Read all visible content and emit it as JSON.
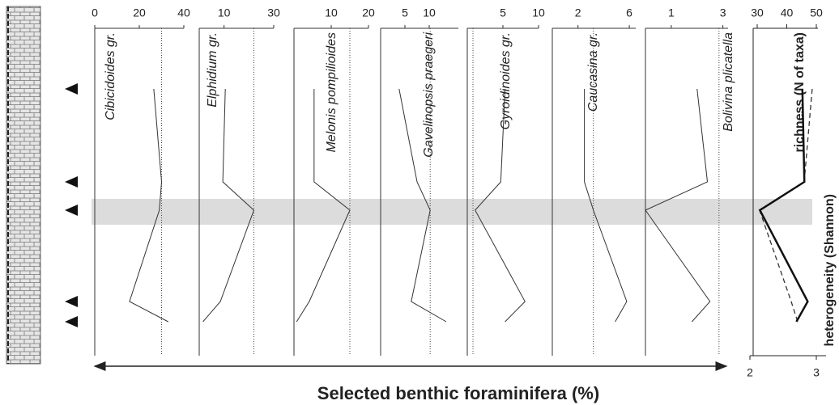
{
  "chart_data": [
    {
      "type": "line",
      "title": "Cibicidoides gr.",
      "xlim": [
        0,
        40
      ],
      "xticks": [
        0,
        20,
        40
      ],
      "ref": 30,
      "categories": [
        null,
        null,
        null,
        null,
        null
      ],
      "values": [
        26.5,
        30,
        29,
        15.6,
        33
      ]
    },
    {
      "type": "line",
      "title": "Elphidium gr.",
      "xlim": [
        0,
        30
      ],
      "xticks": [
        10,
        30
      ],
      "ref": 22,
      "categories": [
        null,
        null,
        null,
        null,
        null
      ],
      "values": [
        10.5,
        9.5,
        22,
        8.5,
        1.5
      ]
    },
    {
      "type": "line",
      "title": "Melonis pompilioides",
      "xlim": [
        0,
        20
      ],
      "xticks": [
        10,
        20
      ],
      "ref": 15,
      "categories": [
        null,
        null,
        null,
        null,
        null
      ],
      "values": [
        5.4,
        5.4,
        15,
        4.1,
        0.7
      ]
    },
    {
      "type": "line",
      "title": "Gavelinopsis praegeri",
      "xlim": [
        0,
        16
      ],
      "xticks": [
        5,
        10
      ],
      "ref": 10.2,
      "categories": [
        null,
        null,
        null,
        null,
        null
      ],
      "values": [
        3.8,
        7.5,
        10.2,
        6.3,
        13.5
      ]
    },
    {
      "type": "line",
      "title": "Gyroidinoides gr.",
      "xlim": [
        0,
        10
      ],
      "xticks": [
        5,
        10
      ],
      "ref": 0.8,
      "categories": [
        null,
        null,
        null,
        null,
        null
      ],
      "values": [
        5.3,
        4.7,
        1.1,
        8.1,
        5.3
      ]
    },
    {
      "type": "line",
      "title": "Caucasina gr.",
      "xlim": [
        0,
        6.5
      ],
      "xticks": [
        2,
        6
      ],
      "ref": 3.2,
      "categories": [
        null,
        null,
        null,
        null,
        null
      ],
      "values": [
        2.5,
        2.5,
        3.2,
        5.8,
        4.9
      ]
    },
    {
      "type": "line",
      "title": "Bolivina plicatella",
      "xlim": [
        0,
        3.2
      ],
      "xticks": [
        1,
        3
      ],
      "ref": 2.85,
      "categories": [
        null,
        null,
        null,
        null,
        null
      ],
      "values": [
        2.0,
        2.4,
        0,
        2.5,
        1.8
      ]
    },
    {
      "type": "line",
      "xlim": [
        2,
        3
      ],
      "xticks": [
        2,
        3
      ],
      "x2lim": [
        30,
        50
      ],
      "x2ticks": [
        30,
        40,
        50
      ],
      "categories": [
        null,
        null,
        null,
        null,
        null
      ],
      "series": [
        {
          "name": "richness (N of taxa)",
          "axis": "x2",
          "color": "#333",
          "dash": true,
          "values": [
            48.6,
            45.9,
            30.8,
            41.5,
            43.7
          ]
        },
        {
          "name": "heterogeneity (Shannon)",
          "axis": "x",
          "color": "#111",
          "dash": false,
          "values": [
            2.79,
            2.82,
            2.15,
            2.87,
            2.7
          ]
        }
      ]
    }
  ],
  "xlabel": "Selected benthic foraminifera (%)"
}
